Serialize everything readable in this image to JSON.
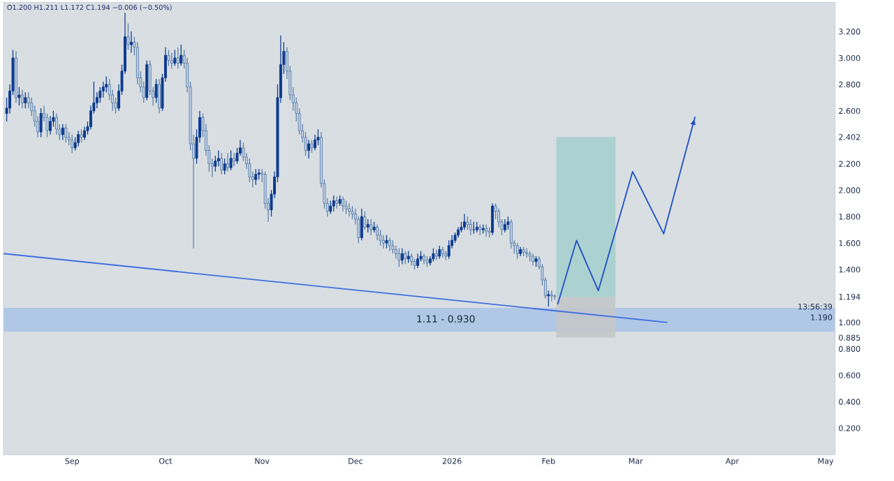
{
  "chart_data": {
    "type": "candlestick",
    "annotations": [
      "O1.200 H1.211 L1.172 C1.194 −0.006 (−0.50%)",
      "13:56:39",
      "1.190"
    ],
    "bands": [
      {
        "axis": "y",
        "from": 0.93,
        "to": 1.11,
        "label": "1.11 - 0.930",
        "color": "#a9c3e6"
      }
    ],
    "series": [
      {
        "x": [
          "2025-08-11",
          "2025-08-12",
          "2025-08-13",
          "2025-08-14",
          "2025-08-15",
          "2025-08-16",
          "2025-08-17",
          "2025-08-18",
          "2025-08-19",
          "2025-08-20",
          "2025-08-21",
          "2025-08-22",
          "2025-08-23",
          "2025-08-24",
          "2025-08-25",
          "2025-08-26",
          "2025-08-27",
          "2025-08-28",
          "2025-08-29",
          "2025-08-30",
          "2025-08-31",
          "2025-09-01",
          "2025-09-02",
          "2025-09-03",
          "2025-09-04",
          "2025-09-05",
          "2025-09-06",
          "2025-09-07",
          "2025-09-08",
          "2025-09-09",
          "2025-09-10",
          "2025-09-11",
          "2025-09-12",
          "2025-09-13",
          "2025-09-14",
          "2025-09-15",
          "2025-09-16",
          "2025-09-17",
          "2025-09-18",
          "2025-09-19",
          "2025-09-20",
          "2025-09-21",
          "2025-09-22",
          "2025-09-23",
          "2025-09-24",
          "2025-09-25",
          "2025-09-26",
          "2025-09-27",
          "2025-09-28",
          "2025-09-29",
          "2025-09-30",
          "2025-10-01",
          "2025-10-02",
          "2025-10-03",
          "2025-10-04",
          "2025-10-05",
          "2025-10-06",
          "2025-10-07",
          "2025-10-08",
          "2025-10-09",
          "2025-10-10",
          "2025-10-11",
          "2025-10-12",
          "2025-10-13",
          "2025-10-14",
          "2025-10-15",
          "2025-10-16",
          "2025-10-17",
          "2025-10-18",
          "2025-10-19",
          "2025-10-20",
          "2025-10-21",
          "2025-10-22",
          "2025-10-23",
          "2025-10-24",
          "2025-10-25",
          "2025-10-26",
          "2025-10-27",
          "2025-10-28",
          "2025-10-29",
          "2025-10-30",
          "2025-10-31",
          "2025-11-01",
          "2025-11-02",
          "2025-11-03",
          "2025-11-04",
          "2025-11-05",
          "2025-11-06",
          "2025-11-07",
          "2025-11-08",
          "2025-11-09",
          "2025-11-10",
          "2025-11-11",
          "2025-11-12",
          "2025-11-13",
          "2025-11-14",
          "2025-11-15",
          "2025-11-16",
          "2025-11-17",
          "2025-11-18",
          "2025-11-19",
          "2025-11-20",
          "2025-11-21",
          "2025-11-22",
          "2025-11-23",
          "2025-11-24",
          "2025-11-25",
          "2025-11-26",
          "2025-11-27",
          "2025-11-28",
          "2025-11-29",
          "2025-11-30",
          "2025-12-01",
          "2025-12-02",
          "2025-12-03",
          "2025-12-04",
          "2025-12-05",
          "2025-12-06",
          "2025-12-07",
          "2025-12-08",
          "2025-12-09",
          "2025-12-10",
          "2025-12-11",
          "2025-12-12",
          "2025-12-13",
          "2025-12-14",
          "2025-12-15",
          "2025-12-16",
          "2025-12-17",
          "2025-12-18",
          "2025-12-19",
          "2025-12-20",
          "2025-12-21",
          "2025-12-22",
          "2025-12-23",
          "2025-12-24",
          "2025-12-25",
          "2025-12-26",
          "2025-12-27",
          "2025-12-28",
          "2025-12-29",
          "2025-12-30",
          "2025-12-31",
          "2026-01-01",
          "2026-01-02",
          "2026-01-03",
          "2026-01-04",
          "2026-01-05",
          "2026-01-06",
          "2026-01-07",
          "2026-01-08",
          "2026-01-09",
          "2026-01-10",
          "2026-01-11",
          "2026-01-12",
          "2026-01-13",
          "2026-01-14",
          "2026-01-15",
          "2026-01-16",
          "2026-01-17",
          "2026-01-18",
          "2026-01-19",
          "2026-01-20",
          "2026-01-21",
          "2026-01-22",
          "2026-01-23",
          "2026-01-24",
          "2026-01-25",
          "2026-01-26",
          "2026-01-27",
          "2026-01-28",
          "2026-01-29",
          "2026-01-30",
          "2026-01-31",
          "2026-02-01",
          "2026-02-02",
          "2026-02-03"
        ],
        "ohlc": [
          [
            2.58,
            2.7,
            2.52,
            2.62
          ],
          [
            2.62,
            2.8,
            2.58,
            2.75
          ],
          [
            2.75,
            3.06,
            2.72,
            3.0
          ],
          [
            3.0,
            3.05,
            2.66,
            2.7
          ],
          [
            2.7,
            2.78,
            2.64,
            2.72
          ],
          [
            2.72,
            2.76,
            2.62,
            2.66
          ],
          [
            2.66,
            2.74,
            2.62,
            2.7
          ],
          [
            2.7,
            2.74,
            2.62,
            2.66
          ],
          [
            2.66,
            2.7,
            2.56,
            2.6
          ],
          [
            2.6,
            2.64,
            2.48,
            2.52
          ],
          [
            2.52,
            2.56,
            2.4,
            2.44
          ],
          [
            2.44,
            2.62,
            2.4,
            2.58
          ],
          [
            2.58,
            2.64,
            2.52,
            2.55
          ],
          [
            2.55,
            2.58,
            2.4,
            2.45
          ],
          [
            2.45,
            2.56,
            2.42,
            2.52
          ],
          [
            2.52,
            2.6,
            2.48,
            2.55
          ],
          [
            2.55,
            2.58,
            2.42,
            2.46
          ],
          [
            2.46,
            2.5,
            2.38,
            2.42
          ],
          [
            2.42,
            2.5,
            2.38,
            2.47
          ],
          [
            2.47,
            2.5,
            2.36,
            2.4
          ],
          [
            2.4,
            2.44,
            2.34,
            2.38
          ],
          [
            2.38,
            2.42,
            2.28,
            2.32
          ],
          [
            2.32,
            2.4,
            2.3,
            2.36
          ],
          [
            2.36,
            2.45,
            2.33,
            2.42
          ],
          [
            2.42,
            2.46,
            2.36,
            2.4
          ],
          [
            2.4,
            2.48,
            2.38,
            2.45
          ],
          [
            2.45,
            2.52,
            2.42,
            2.48
          ],
          [
            2.48,
            2.64,
            2.46,
            2.6
          ],
          [
            2.6,
            2.82,
            2.58,
            2.66
          ],
          [
            2.66,
            2.74,
            2.62,
            2.7
          ],
          [
            2.7,
            2.78,
            2.66,
            2.75
          ],
          [
            2.75,
            2.82,
            2.7,
            2.78
          ],
          [
            2.78,
            2.86,
            2.74,
            2.8
          ],
          [
            2.8,
            2.84,
            2.68,
            2.72
          ],
          [
            2.72,
            2.76,
            2.6,
            2.66
          ],
          [
            2.66,
            2.7,
            2.58,
            2.62
          ],
          [
            2.62,
            2.8,
            2.6,
            2.75
          ],
          [
            2.75,
            2.95,
            2.72,
            2.9
          ],
          [
            2.9,
            3.34,
            2.88,
            3.16
          ],
          [
            3.16,
            3.26,
            3.06,
            3.1
          ],
          [
            3.1,
            3.2,
            3.04,
            3.12
          ],
          [
            3.12,
            3.16,
            3.02,
            3.08
          ],
          [
            3.08,
            3.12,
            2.8,
            2.85
          ],
          [
            2.85,
            2.9,
            2.74,
            2.78
          ],
          [
            2.78,
            2.82,
            2.66,
            2.7
          ],
          [
            2.7,
            2.98,
            2.68,
            2.95
          ],
          [
            2.95,
            2.98,
            2.72,
            2.75
          ],
          [
            2.75,
            2.78,
            2.64,
            2.7
          ],
          [
            2.7,
            2.84,
            2.66,
            2.8
          ],
          [
            2.8,
            2.84,
            2.58,
            2.62
          ],
          [
            2.62,
            2.88,
            2.6,
            2.85
          ],
          [
            2.85,
            3.08,
            2.82,
            3.02
          ],
          [
            3.02,
            3.06,
            2.94,
            2.98
          ],
          [
            2.98,
            3.04,
            2.92,
            2.96
          ],
          [
            2.96,
            3.06,
            2.94,
            3.0
          ],
          [
            3.0,
            3.08,
            2.92,
            2.96
          ],
          [
            2.96,
            3.1,
            2.94,
            3.02
          ],
          [
            3.02,
            3.06,
            2.92,
            2.96
          ],
          [
            2.96,
            3.0,
            2.74,
            2.78
          ],
          [
            2.78,
            2.82,
            2.3,
            2.35
          ],
          [
            2.35,
            2.42,
            1.56,
            2.24
          ],
          [
            2.24,
            2.46,
            2.2,
            2.4
          ],
          [
            2.4,
            2.6,
            2.36,
            2.55
          ],
          [
            2.55,
            2.58,
            2.4,
            2.45
          ],
          [
            2.45,
            2.5,
            2.26,
            2.3
          ],
          [
            2.3,
            2.34,
            2.14,
            2.2
          ],
          [
            2.2,
            2.24,
            2.1,
            2.18
          ],
          [
            2.18,
            2.26,
            2.14,
            2.22
          ],
          [
            2.22,
            2.3,
            2.18,
            2.24
          ],
          [
            2.24,
            2.28,
            2.12,
            2.15
          ],
          [
            2.15,
            2.24,
            2.12,
            2.2
          ],
          [
            2.2,
            2.28,
            2.14,
            2.17
          ],
          [
            2.17,
            2.3,
            2.15,
            2.24
          ],
          [
            2.24,
            2.28,
            2.18,
            2.22
          ],
          [
            2.22,
            2.32,
            2.2,
            2.28
          ],
          [
            2.28,
            2.38,
            2.26,
            2.32
          ],
          [
            2.32,
            2.36,
            2.22,
            2.25
          ],
          [
            2.25,
            2.28,
            2.16,
            2.2
          ],
          [
            2.2,
            2.24,
            2.06,
            2.1
          ],
          [
            2.1,
            2.14,
            2.02,
            2.08
          ],
          [
            2.08,
            2.16,
            2.04,
            2.12
          ],
          [
            2.12,
            2.16,
            2.08,
            2.13
          ],
          [
            2.13,
            2.16,
            2.06,
            2.12
          ],
          [
            2.12,
            2.14,
            1.86,
            1.9
          ],
          [
            1.9,
            1.94,
            1.76,
            1.85
          ],
          [
            1.85,
            2.0,
            1.8,
            1.97
          ],
          [
            1.97,
            2.14,
            1.94,
            2.1
          ],
          [
            2.1,
            2.8,
            2.06,
            2.7
          ],
          [
            2.7,
            3.17,
            2.66,
            2.95
          ],
          [
            2.95,
            3.12,
            2.88,
            3.05
          ],
          [
            3.05,
            3.08,
            2.84,
            2.9
          ],
          [
            2.9,
            2.94,
            2.68,
            2.72
          ],
          [
            2.72,
            2.78,
            2.6,
            2.66
          ],
          [
            2.66,
            2.7,
            2.52,
            2.58
          ],
          [
            2.58,
            2.62,
            2.42,
            2.45
          ],
          [
            2.45,
            2.5,
            2.36,
            2.4
          ],
          [
            2.4,
            2.44,
            2.26,
            2.3
          ],
          [
            2.3,
            2.38,
            2.24,
            2.35
          ],
          [
            2.35,
            2.38,
            2.28,
            2.32
          ],
          [
            2.32,
            2.42,
            2.3,
            2.38
          ],
          [
            2.38,
            2.46,
            2.34,
            2.4
          ],
          [
            2.4,
            2.44,
            2.02,
            2.05
          ],
          [
            2.05,
            2.08,
            1.86,
            1.9
          ],
          [
            1.9,
            1.94,
            1.8,
            1.84
          ],
          [
            1.84,
            1.92,
            1.82,
            1.88
          ],
          [
            1.88,
            1.96,
            1.84,
            1.92
          ],
          [
            1.92,
            1.95,
            1.86,
            1.9
          ],
          [
            1.9,
            1.96,
            1.88,
            1.93
          ],
          [
            1.93,
            1.95,
            1.84,
            1.88
          ],
          [
            1.88,
            1.92,
            1.82,
            1.86
          ],
          [
            1.86,
            1.9,
            1.8,
            1.84
          ],
          [
            1.84,
            1.88,
            1.78,
            1.82
          ],
          [
            1.82,
            1.86,
            1.74,
            1.78
          ],
          [
            1.78,
            1.8,
            1.6,
            1.64
          ],
          [
            1.64,
            1.86,
            1.62,
            1.8
          ],
          [
            1.8,
            1.84,
            1.7,
            1.72
          ],
          [
            1.72,
            1.78,
            1.68,
            1.74
          ],
          [
            1.74,
            1.78,
            1.66,
            1.7
          ],
          [
            1.7,
            1.76,
            1.68,
            1.72
          ],
          [
            1.72,
            1.74,
            1.62,
            1.66
          ],
          [
            1.66,
            1.7,
            1.58,
            1.62
          ],
          [
            1.62,
            1.66,
            1.56,
            1.6
          ],
          [
            1.6,
            1.66,
            1.56,
            1.62
          ],
          [
            1.62,
            1.64,
            1.54,
            1.58
          ],
          [
            1.58,
            1.62,
            1.52,
            1.55
          ],
          [
            1.55,
            1.58,
            1.48,
            1.52
          ],
          [
            1.52,
            1.56,
            1.42,
            1.47
          ],
          [
            1.47,
            1.56,
            1.44,
            1.52
          ],
          [
            1.52,
            1.54,
            1.44,
            1.48
          ],
          [
            1.48,
            1.54,
            1.45,
            1.5
          ],
          [
            1.5,
            1.52,
            1.43,
            1.46
          ],
          [
            1.46,
            1.48,
            1.4,
            1.43
          ],
          [
            1.43,
            1.52,
            1.41,
            1.48
          ],
          [
            1.48,
            1.54,
            1.46,
            1.5
          ],
          [
            1.5,
            1.52,
            1.44,
            1.47
          ],
          [
            1.47,
            1.5,
            1.42,
            1.45
          ],
          [
            1.45,
            1.5,
            1.43,
            1.48
          ],
          [
            1.48,
            1.56,
            1.46,
            1.52
          ],
          [
            1.52,
            1.55,
            1.47,
            1.5
          ],
          [
            1.5,
            1.58,
            1.48,
            1.55
          ],
          [
            1.55,
            1.57,
            1.49,
            1.52
          ],
          [
            1.52,
            1.54,
            1.47,
            1.5
          ],
          [
            1.5,
            1.62,
            1.48,
            1.58
          ],
          [
            1.58,
            1.66,
            1.56,
            1.62
          ],
          [
            1.62,
            1.68,
            1.6,
            1.66
          ],
          [
            1.66,
            1.72,
            1.64,
            1.7
          ],
          [
            1.7,
            1.76,
            1.68,
            1.72
          ],
          [
            1.72,
            1.82,
            1.7,
            1.76
          ],
          [
            1.76,
            1.8,
            1.7,
            1.74
          ],
          [
            1.74,
            1.78,
            1.66,
            1.7
          ],
          [
            1.7,
            1.76,
            1.67,
            1.7
          ],
          [
            1.7,
            1.76,
            1.68,
            1.72
          ],
          [
            1.72,
            1.74,
            1.66,
            1.7
          ],
          [
            1.7,
            1.74,
            1.67,
            1.71
          ],
          [
            1.71,
            1.74,
            1.65,
            1.69
          ],
          [
            1.69,
            1.72,
            1.64,
            1.68
          ],
          [
            1.68,
            1.9,
            1.66,
            1.88
          ],
          [
            1.88,
            1.9,
            1.78,
            1.84
          ],
          [
            1.84,
            1.86,
            1.72,
            1.76
          ],
          [
            1.76,
            1.78,
            1.66,
            1.7
          ],
          [
            1.7,
            1.78,
            1.68,
            1.74
          ],
          [
            1.74,
            1.8,
            1.7,
            1.76
          ],
          [
            1.76,
            1.78,
            1.56,
            1.6
          ],
          [
            1.6,
            1.62,
            1.52,
            1.58
          ],
          [
            1.58,
            1.6,
            1.48,
            1.52
          ],
          [
            1.52,
            1.57,
            1.5,
            1.55
          ],
          [
            1.55,
            1.57,
            1.5,
            1.53
          ],
          [
            1.53,
            1.56,
            1.49,
            1.52
          ],
          [
            1.52,
            1.54,
            1.46,
            1.5
          ],
          [
            1.5,
            1.52,
            1.43,
            1.46
          ],
          [
            1.46,
            1.5,
            1.42,
            1.48
          ],
          [
            1.48,
            1.5,
            1.4,
            1.42
          ],
          [
            1.42,
            1.44,
            1.28,
            1.32
          ],
          [
            1.32,
            1.34,
            1.18,
            1.2
          ],
          [
            1.2,
            1.24,
            1.12,
            1.21
          ],
          [
            1.21,
            1.24,
            1.16,
            1.2
          ],
          [
            1.2,
            1.211,
            1.172,
            1.194
          ]
        ]
      },
      {
        "type": "bar",
        "x": [
          "2026-02-13"
        ],
        "base": [
          1.19
        ],
        "values": [
          1.212
        ],
        "color": "#a7cfcf"
      },
      {
        "type": "bar",
        "x": [
          "2026-02-13"
        ],
        "base": [
          0.885
        ],
        "values": [
          0.305
        ],
        "color": "#c4c6ca"
      },
      {
        "type": "line",
        "x": [
          "2025-08-10",
          "2026-03-11"
        ],
        "values": [
          1.52,
          1.0
        ],
        "color": "#3f6fe0"
      },
      {
        "type": "line",
        "x": [
          "2026-02-04",
          "2026-02-10",
          "2026-02-17",
          "2026-02-28",
          "2026-03-10",
          "2026-03-20"
        ],
        "values": [
          1.14,
          1.62,
          1.24,
          2.14,
          1.67,
          2.55
        ],
        "color": "#1f4fc4"
      }
    ],
    "xlim": [
      "2025-08-10",
      "2026-05-04"
    ],
    "xticks": [
      {
        "value": "2025-09-01",
        "label": "Sep"
      },
      {
        "value": "2025-10-01",
        "label": "Oct"
      },
      {
        "value": "2025-11-01",
        "label": "Nov"
      },
      {
        "value": "2025-12-01",
        "label": "Dec"
      },
      {
        "value": "2026-01-01",
        "label": "2026"
      },
      {
        "value": "2026-02-01",
        "label": "Feb"
      },
      {
        "value": "2026-03-01",
        "label": "Mar"
      },
      {
        "value": "2026-04-01",
        "label": "Apr"
      },
      {
        "value": "2026-05-01",
        "label": "May"
      }
    ],
    "ylim": [
      0.0,
      3.42
    ],
    "yticks": [
      {
        "value": 0.2,
        "label": "0.200"
      },
      {
        "value": 0.4,
        "label": "0.400"
      },
      {
        "value": 0.6,
        "label": "0.600"
      },
      {
        "value": 0.8,
        "label": "0.800"
      },
      {
        "value": 0.885,
        "label": "0.885"
      },
      {
        "value": 1.0,
        "label": "1.000"
      },
      {
        "value": 1.194,
        "label": "1.194"
      },
      {
        "value": 1.4,
        "label": "1.400"
      },
      {
        "value": 1.6,
        "label": "1.600"
      },
      {
        "value": 1.8,
        "label": "1.800"
      },
      {
        "value": 2.0,
        "label": "2.000"
      },
      {
        "value": 2.2,
        "label": "2.200"
      },
      {
        "value": 2.402,
        "label": "2.402"
      },
      {
        "value": 2.6,
        "label": "2.600"
      },
      {
        "value": 2.8,
        "label": "2.800"
      },
      {
        "value": 3.0,
        "label": "3.000"
      },
      {
        "value": 3.2,
        "label": "3.200"
      }
    ],
    "grid": false,
    "legend": false
  }
}
